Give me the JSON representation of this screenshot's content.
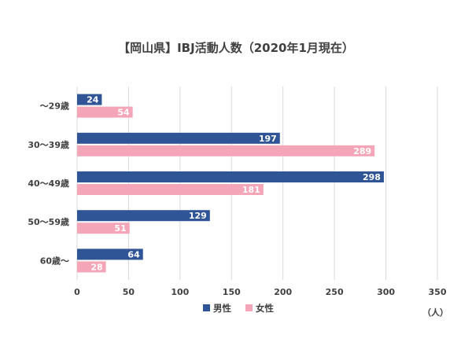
{
  "chart_data": {
    "type": "bar",
    "orientation": "horizontal",
    "title": "【岡山県】IBJ活動人数（2020年1月現在）",
    "unit": "（人）",
    "categories": [
      "〜29歳",
      "30〜39歳",
      "40〜49歳",
      "50〜59歳",
      "60歳〜"
    ],
    "series": [
      {
        "name": "男性",
        "values": [
          24,
          197,
          298,
          129,
          64
        ],
        "color": "#2f5597"
      },
      {
        "name": "女性",
        "values": [
          54,
          289,
          181,
          51,
          28
        ],
        "color": "#f4a6b8"
      }
    ],
    "xlim": [
      0,
      350
    ],
    "xticks": [
      0,
      50,
      100,
      150,
      200,
      250,
      300,
      350
    ],
    "grid": true,
    "legend_position": "bottom"
  }
}
